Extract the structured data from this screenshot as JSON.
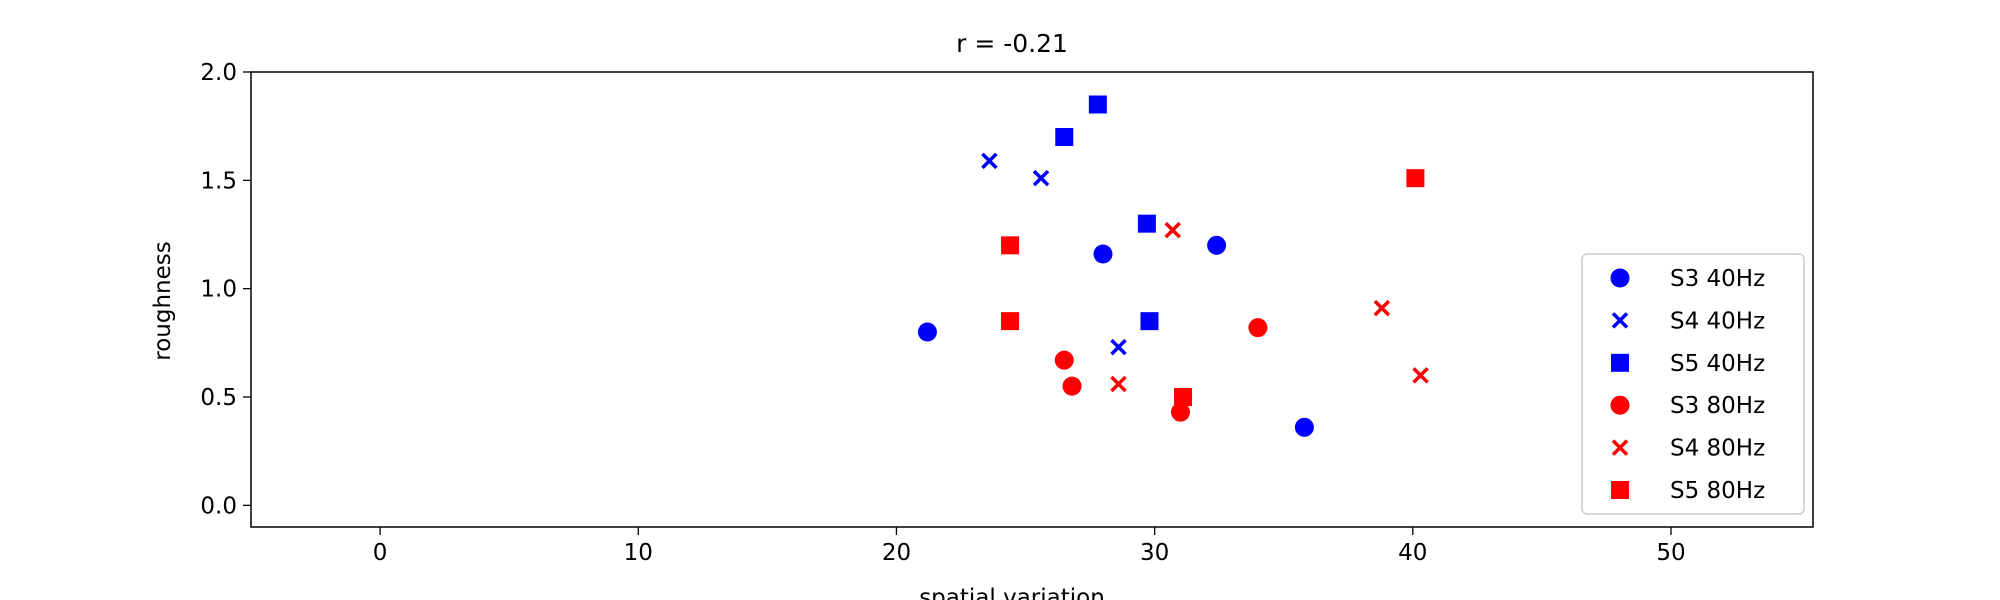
{
  "chart_data": {
    "type": "scatter",
    "title": "r = -0.21",
    "xlabel": "spatial variation",
    "ylabel": "roughness",
    "xlim": [
      -5,
      55.5
    ],
    "ylim": [
      -0.1,
      2.0
    ],
    "xticks": [
      0,
      10,
      20,
      30,
      40,
      50
    ],
    "yticks": [
      0.0,
      0.5,
      1.0,
      1.5,
      2.0
    ],
    "xtick_labels": [
      "0",
      "10",
      "20",
      "30",
      "40",
      "50"
    ],
    "ytick_labels": [
      "0.0",
      "0.5",
      "1.0",
      "1.5",
      "2.0"
    ],
    "grid": false,
    "legend_position": "lower-right",
    "series": [
      {
        "name": "S3 40Hz",
        "color": "#0000ff",
        "marker": "circle",
        "x": [
          21.2,
          28.0,
          32.4,
          35.8
        ],
        "y": [
          0.8,
          1.16,
          1.2,
          0.36
        ]
      },
      {
        "name": "S4 40Hz",
        "color": "#0000ff",
        "marker": "x",
        "x": [
          23.6,
          25.6,
          28.6
        ],
        "y": [
          1.59,
          1.51,
          0.73
        ]
      },
      {
        "name": "S5 40Hz",
        "color": "#0000ff",
        "marker": "square",
        "x": [
          26.5,
          27.8,
          29.7,
          29.8
        ],
        "y": [
          1.7,
          1.85,
          1.3,
          0.85
        ]
      },
      {
        "name": "S3 80Hz",
        "color": "#ff0000",
        "marker": "circle",
        "x": [
          26.5,
          26.8,
          31.0,
          34.0
        ],
        "y": [
          0.67,
          0.55,
          0.43,
          0.82
        ]
      },
      {
        "name": "S4 80Hz",
        "color": "#ff0000",
        "marker": "x",
        "x": [
          30.7,
          28.6,
          38.8,
          40.3
        ],
        "y": [
          1.27,
          0.56,
          0.91,
          0.6
        ]
      },
      {
        "name": "S5 80Hz",
        "color": "#ff0000",
        "marker": "square",
        "x": [
          24.4,
          24.4,
          31.1,
          40.1
        ],
        "y": [
          1.2,
          0.85,
          0.5,
          1.51
        ]
      }
    ]
  }
}
